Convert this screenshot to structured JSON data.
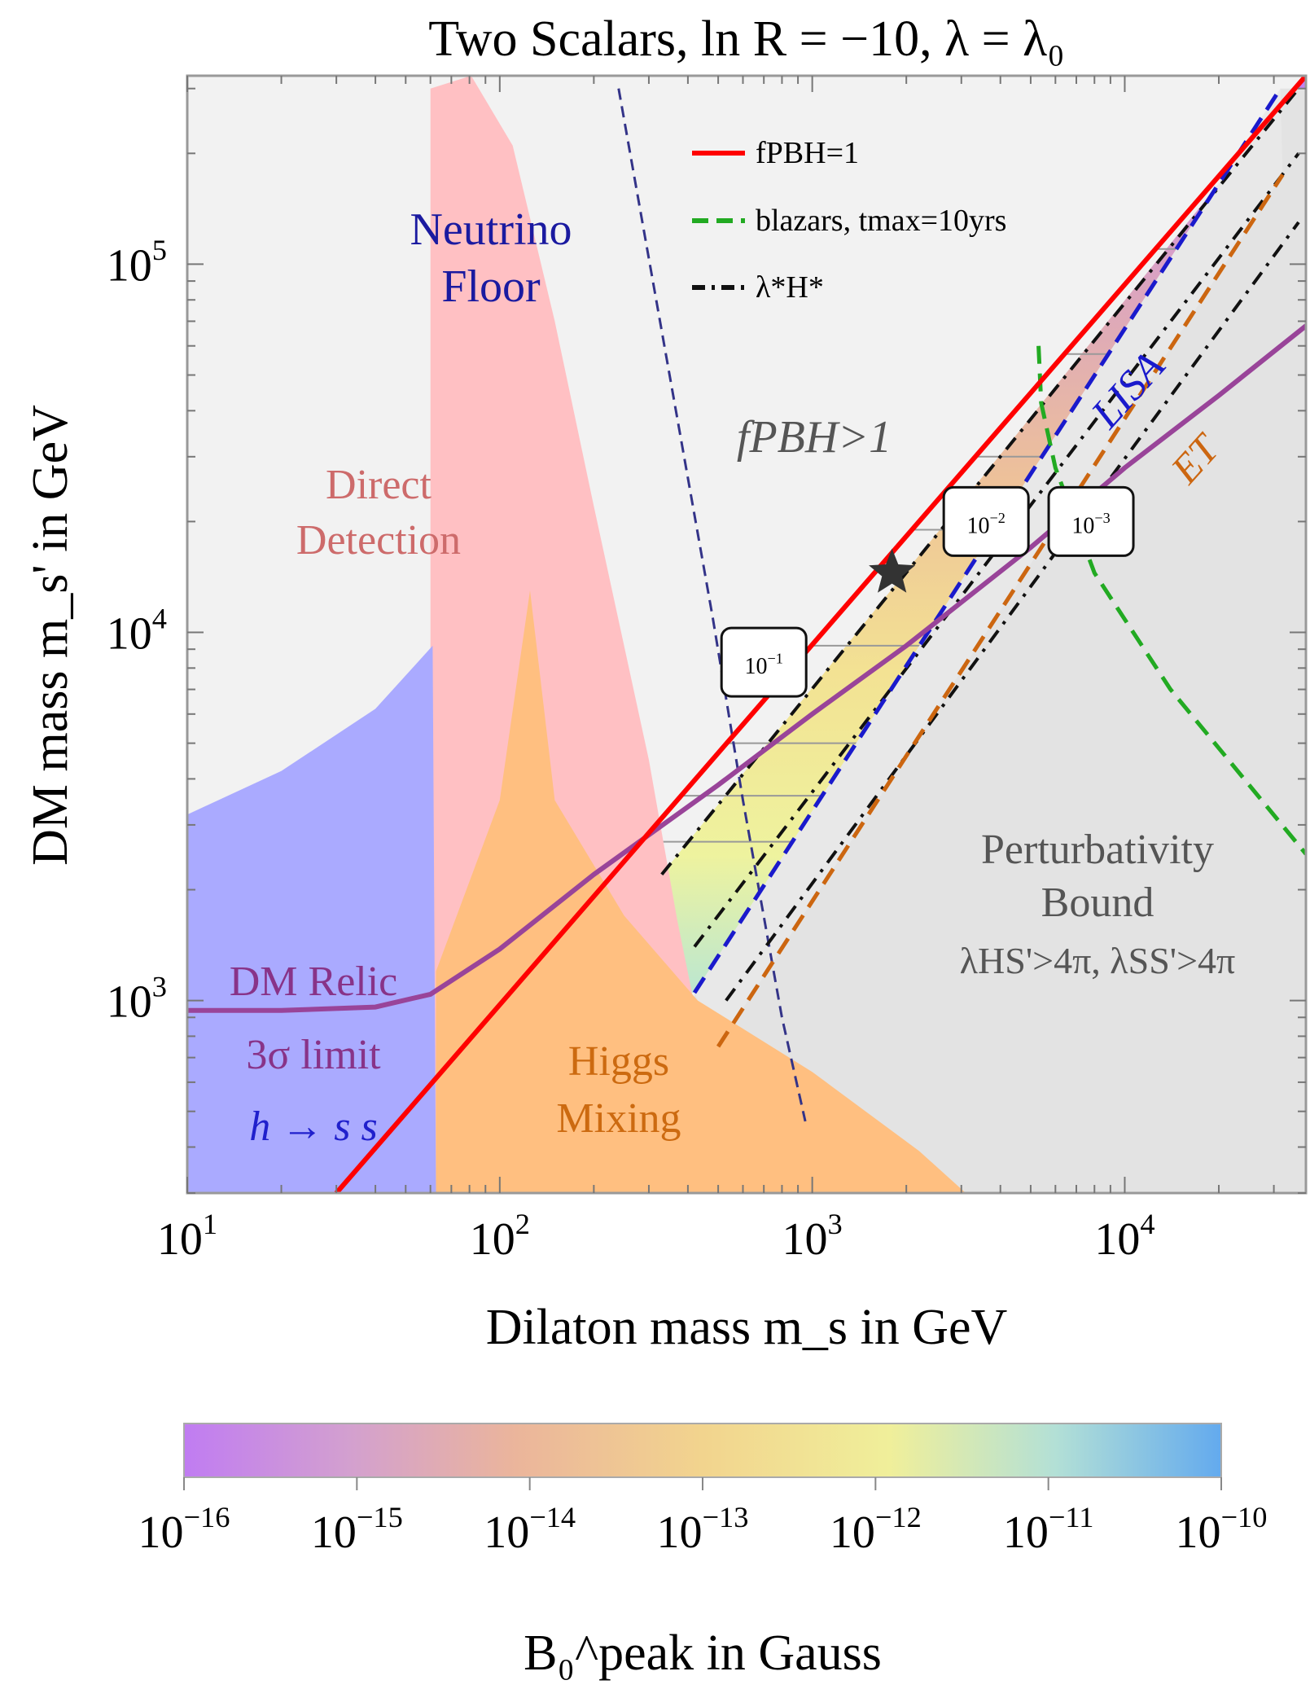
{
  "chart_data": {
    "type": "region-plot",
    "title": "Two Scalars, ln R = −10, λ = λ₀",
    "xlabel": "Dilaton mass m_s in GeV",
    "ylabel": "DM mass m_s' in GeV",
    "xscale": "log",
    "yscale": "log",
    "xlim": [
      10,
      38000
    ],
    "ylim": [
      300,
      325000
    ],
    "x_ticks": [
      "10^1",
      "10^2",
      "10^3",
      "10^4"
    ],
    "y_ticks": [
      "10^3",
      "10^4",
      "10^5"
    ],
    "regions": [
      {
        "name": "Direct Detection",
        "label_lines": [
          "Direct",
          "Detection"
        ],
        "color": "#ffc0c3",
        "label_color": "#cd6b6b",
        "boundary": [
          [
            10,
            2500
          ],
          [
            20,
            3500
          ],
          [
            40,
            5000
          ],
          [
            60,
            9000
          ],
          [
            60,
            300000
          ],
          [
            81,
            325000
          ],
          [
            110,
            210000
          ],
          [
            150,
            70000
          ],
          [
            200,
            22000
          ],
          [
            300,
            4500
          ],
          [
            370,
            1650
          ],
          [
            430,
            880
          ],
          [
            490,
            300
          ]
        ]
      },
      {
        "name": "Higgs Mixing",
        "label_lines": [
          "Higgs",
          "Mixing"
        ],
        "color": "#ffbf80",
        "label_color": "#cc6a10",
        "boundary": [
          [
            62.5,
            300
          ],
          [
            62.5,
            1200
          ],
          [
            100,
            3500
          ],
          [
            125,
            13000
          ],
          [
            150,
            3500
          ],
          [
            250,
            1700
          ],
          [
            430,
            1000
          ],
          [
            1000,
            640
          ],
          [
            2200,
            390
          ],
          [
            3100,
            300
          ]
        ]
      },
      {
        "name": "h → s s",
        "label": "h → s s",
        "color": "#aaaaff",
        "label_color": "#2020cc",
        "boundary": [
          [
            10,
            300
          ],
          [
            10,
            3200
          ],
          [
            20,
            4200
          ],
          [
            40,
            6200
          ],
          [
            61,
            9200
          ],
          [
            62.5,
            300
          ]
        ]
      },
      {
        "name": "f_PBH > 1",
        "label": "fPBH>1",
        "color": "#f2f2f2",
        "label_color": "#555555"
      },
      {
        "name": "Perturbativity Bound",
        "label_lines": [
          "Perturbativity",
          "Bound",
          "λHS'>4π, λSS'>4π"
        ],
        "color": "#e3e3e3",
        "label_color": "#555555"
      }
    ],
    "series": [
      {
        "name": "f_PBH = 1",
        "style": "solid",
        "color": "#ff0000",
        "x": [
          30,
          38000
        ],
        "y": [
          300,
          325000
        ]
      },
      {
        "name": "DM Relic 3σ limit",
        "style": "solid",
        "color": "#994499",
        "x": [
          10,
          20,
          40,
          60,
          100,
          200,
          500,
          1000,
          2000,
          5000,
          10000,
          20000,
          38000
        ],
        "y": [
          940,
          940,
          960,
          1040,
          1380,
          2200,
          3850,
          6000,
          9200,
          17000,
          28000,
          44000,
          68000
        ]
      },
      {
        "name": "LISA",
        "style": "dashed",
        "color": "#1a1acc",
        "x": [
          420,
          31500
        ],
        "y": [
          1050,
          300000
        ]
      },
      {
        "name": "ET",
        "style": "dashed",
        "color": "#cc6610",
        "x": [
          500,
          32000
        ],
        "y": [
          750,
          175000
        ]
      },
      {
        "name": "blazars, t_max = 10yrs",
        "style": "dashed",
        "color": "#22aa22",
        "x": [
          5300,
          5400,
          6000,
          8000,
          14000,
          38000
        ],
        "y": [
          60000,
          42000,
          28000,
          14500,
          7000,
          2500
        ]
      },
      {
        "name": "Neutrino Floor",
        "style": "dashed",
        "color": "#333388",
        "x": [
          240,
          480,
          600,
          800,
          950
        ],
        "y": [
          300000,
          11000,
          3500,
          900,
          470
        ]
      },
      {
        "name": "λ*H* contour 10^-1",
        "style": "dashdot",
        "color": "#111111",
        "x": [
          330,
          36000
        ],
        "y": [
          2200,
          300000
        ]
      },
      {
        "name": "λ*H* contour 10^-2",
        "style": "dashdot",
        "color": "#111111",
        "x": [
          420,
          36000
        ],
        "y": [
          1400,
          200000
        ]
      },
      {
        "name": "λ*H* contour 10^-3",
        "style": "dashdot",
        "color": "#111111",
        "x": [
          530,
          36000
        ],
        "y": [
          1000,
          130000
        ]
      }
    ],
    "contour_labels": [
      {
        "text": "10^-1",
        "x": 700,
        "y": 8300
      },
      {
        "text": "10^-2",
        "x": 3600,
        "y": 20000
      },
      {
        "text": "10^-3",
        "x": 7800,
        "y": 20000
      }
    ],
    "benchmark": {
      "name": "benchmark star",
      "x": 1800,
      "y": 14500
    },
    "legend": {
      "position": "top-right",
      "entries": [
        {
          "label": "fPBH=1",
          "color": "#ff0000",
          "style": "solid"
        },
        {
          "label": "blazars, tmax=10yrs",
          "color": "#22aa22",
          "style": "dashed"
        },
        {
          "label": "λ*H*",
          "color": "#111111",
          "style": "dashdot"
        }
      ]
    },
    "annotations": [
      {
        "text": "Neutrino Floor",
        "color": "#1a1aa0"
      },
      {
        "text": "DM Relic 3σ limit",
        "color": "#883388"
      },
      {
        "text": "LISA",
        "color": "#1a1acc"
      },
      {
        "text": "ET",
        "color": "#cc6610"
      }
    ],
    "colorbar": {
      "label": "B₀^peak in Gauss",
      "scale": "log",
      "range": [
        1e-16,
        1e-10
      ],
      "tick_labels": [
        "10^-16",
        "10^-15",
        "10^-14",
        "10^-13",
        "10^-12",
        "10^-11",
        "10^-10"
      ],
      "colors": [
        "#c07cf2",
        "#dba3b7",
        "#f2c08d",
        "#f2e48e",
        "#f0f09a",
        "#a9dcde",
        "#63aaee"
      ]
    }
  }
}
